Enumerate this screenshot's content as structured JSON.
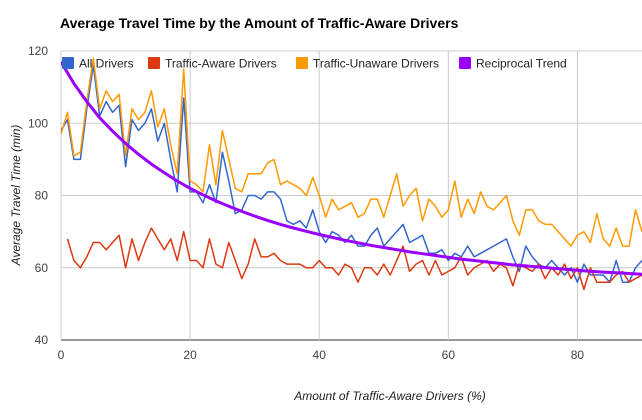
{
  "chart_data": {
    "type": "line",
    "title": "Average Travel Time by the Amount of Traffic-Aware Drivers",
    "xlabel": "Amount of Traffic-Aware Drivers (%)",
    "ylabel": "Average Travel Time (min)",
    "xlim": [
      0,
      90
    ],
    "ylim": [
      40,
      120
    ],
    "xticks": [
      0,
      20,
      40,
      60,
      80
    ],
    "yticks": [
      40,
      60,
      80,
      100,
      120
    ],
    "gridlines": true,
    "legend_position": "top",
    "series": [
      {
        "name": "All Drivers",
        "color": "#3366cc",
        "x": [
          0,
          1,
          2,
          3,
          4,
          5,
          6,
          7,
          8,
          9,
          10,
          11,
          12,
          13,
          14,
          15,
          16,
          17,
          18,
          19,
          20,
          21,
          22,
          23,
          24,
          25,
          26,
          27,
          28,
          29,
          30,
          31,
          32,
          33,
          34,
          35,
          36,
          37,
          38,
          39,
          40,
          41,
          42,
          43,
          44,
          45,
          46,
          47,
          48,
          49,
          50,
          51,
          52,
          53,
          54,
          55,
          56,
          57,
          58,
          59,
          60,
          61,
          62,
          63,
          64,
          65,
          66,
          67,
          68,
          69,
          70,
          71,
          72,
          73,
          74,
          75,
          76,
          77,
          78,
          79,
          80,
          81,
          82,
          83,
          84,
          85,
          86,
          87,
          88,
          89,
          90
        ],
        "values": [
          98,
          101,
          90,
          90,
          104,
          116,
          102,
          106,
          103,
          105,
          88,
          101,
          98,
          100,
          104,
          95,
          100,
          90,
          81,
          107,
          81,
          81,
          78,
          83,
          78,
          92,
          84,
          75,
          76,
          80,
          80,
          79,
          81,
          81,
          79,
          73,
          72,
          73,
          71,
          76,
          70,
          67,
          70,
          69,
          67,
          69,
          66,
          66,
          69,
          71,
          66,
          68,
          70,
          72,
          67,
          68,
          69,
          64,
          64,
          65,
          62,
          64,
          63,
          66,
          63,
          64,
          65,
          66,
          67,
          68,
          63,
          59,
          66,
          63,
          61,
          60,
          62,
          60,
          58,
          60,
          56,
          61,
          58,
          58,
          58,
          56,
          62,
          56,
          56,
          60,
          62
        ]
      },
      {
        "name": "Traffic-Aware Drivers",
        "color": "#dc3912",
        "x": [
          1,
          2,
          3,
          4,
          5,
          6,
          7,
          8,
          9,
          10,
          11,
          12,
          13,
          14,
          15,
          16,
          17,
          18,
          19,
          20,
          21,
          22,
          23,
          24,
          25,
          26,
          27,
          28,
          29,
          30,
          31,
          32,
          33,
          34,
          35,
          36,
          37,
          38,
          39,
          40,
          41,
          42,
          43,
          44,
          45,
          46,
          47,
          48,
          49,
          50,
          51,
          52,
          53,
          54,
          55,
          56,
          57,
          58,
          59,
          60,
          61,
          62,
          63,
          64,
          65,
          66,
          67,
          68,
          69,
          70,
          71,
          72,
          73,
          74,
          75,
          76,
          77,
          78,
          79,
          80,
          81,
          82,
          83,
          84,
          85,
          86,
          87,
          88,
          89,
          90
        ],
        "values": [
          68,
          62,
          60,
          63,
          67,
          67,
          65,
          67,
          69,
          60,
          68,
          62,
          67,
          71,
          68,
          65,
          68,
          62,
          70,
          62,
          62,
          60,
          68,
          61,
          60,
          67,
          62,
          57,
          61,
          68,
          63,
          63,
          64,
          62,
          61,
          61,
          61,
          60,
          60,
          62,
          60,
          60,
          58,
          61,
          60,
          56,
          60,
          60,
          58,
          61,
          58,
          62,
          66,
          59,
          61,
          62,
          58,
          62,
          58,
          59,
          60,
          63,
          58,
          60,
          61,
          62,
          59,
          61,
          60,
          55,
          61,
          60,
          59,
          61,
          57,
          60,
          58,
          61,
          57,
          60,
          54,
          60,
          56,
          56,
          56,
          58,
          59,
          56,
          57,
          58
        ]
      },
      {
        "name": "Traffic-Unaware Drivers",
        "color": "#ff9900",
        "x": [
          0,
          1,
          2,
          3,
          4,
          5,
          6,
          7,
          8,
          9,
          10,
          11,
          12,
          13,
          14,
          15,
          16,
          17,
          18,
          19,
          20,
          21,
          22,
          23,
          24,
          25,
          26,
          27,
          28,
          29,
          30,
          31,
          32,
          33,
          34,
          35,
          36,
          37,
          38,
          39,
          40,
          41,
          42,
          43,
          44,
          45,
          46,
          47,
          48,
          49,
          50,
          51,
          52,
          53,
          54,
          55,
          56,
          57,
          58,
          59,
          60,
          61,
          62,
          63,
          64,
          65,
          66,
          67,
          68,
          69,
          70,
          71,
          72,
          73,
          74,
          75,
          76,
          77,
          78,
          79,
          80,
          81,
          82,
          83,
          84,
          85,
          86,
          87,
          88,
          89,
          90
        ],
        "values": [
          97,
          103,
          91,
          92,
          106,
          118,
          104,
          109,
          106,
          108,
          91,
          104,
          101,
          103,
          109,
          99,
          104,
          94,
          86,
          115,
          84,
          83,
          81,
          94,
          83,
          98,
          90,
          82,
          81,
          86,
          86,
          86,
          89,
          90,
          83,
          84,
          83,
          82,
          80,
          85,
          80,
          74,
          79,
          76,
          77,
          78,
          74,
          75,
          79,
          79,
          74,
          80,
          86,
          77,
          80,
          82,
          73,
          79,
          77,
          74,
          76,
          84,
          74,
          79,
          75,
          81,
          77,
          76,
          78,
          80,
          73,
          69,
          76,
          76,
          73,
          72,
          72,
          70,
          68,
          66,
          69,
          70,
          67,
          75,
          68,
          66,
          71,
          66,
          66,
          76,
          70
        ]
      },
      {
        "name": "Reciprocal Trend",
        "color": "#9900ff",
        "x": [
          0,
          2,
          4,
          6,
          8,
          10,
          12,
          14,
          16,
          18,
          20,
          22,
          24,
          26,
          28,
          30,
          32,
          34,
          36,
          38,
          40,
          42,
          44,
          46,
          48,
          50,
          52,
          54,
          56,
          58,
          60,
          62,
          64,
          66,
          68,
          70,
          72,
          74,
          76,
          78,
          80,
          82,
          84,
          86,
          88,
          90
        ],
        "values": [
          117,
          111,
          106,
          101.5,
          97.8,
          94.4,
          91.4,
          88.7,
          86.3,
          84,
          82,
          80.2,
          78.5,
          77,
          75.6,
          74.3,
          73.1,
          72,
          71,
          70.1,
          69.2,
          68.4,
          67.6,
          66.9,
          66.2,
          65.6,
          65,
          64.4,
          63.9,
          63.4,
          62.9,
          62.4,
          62,
          61.6,
          61.2,
          60.8,
          60.5,
          60.2,
          59.9,
          59.6,
          59.3,
          59,
          58.8,
          58.6,
          58.4,
          58.2
        ]
      }
    ]
  }
}
